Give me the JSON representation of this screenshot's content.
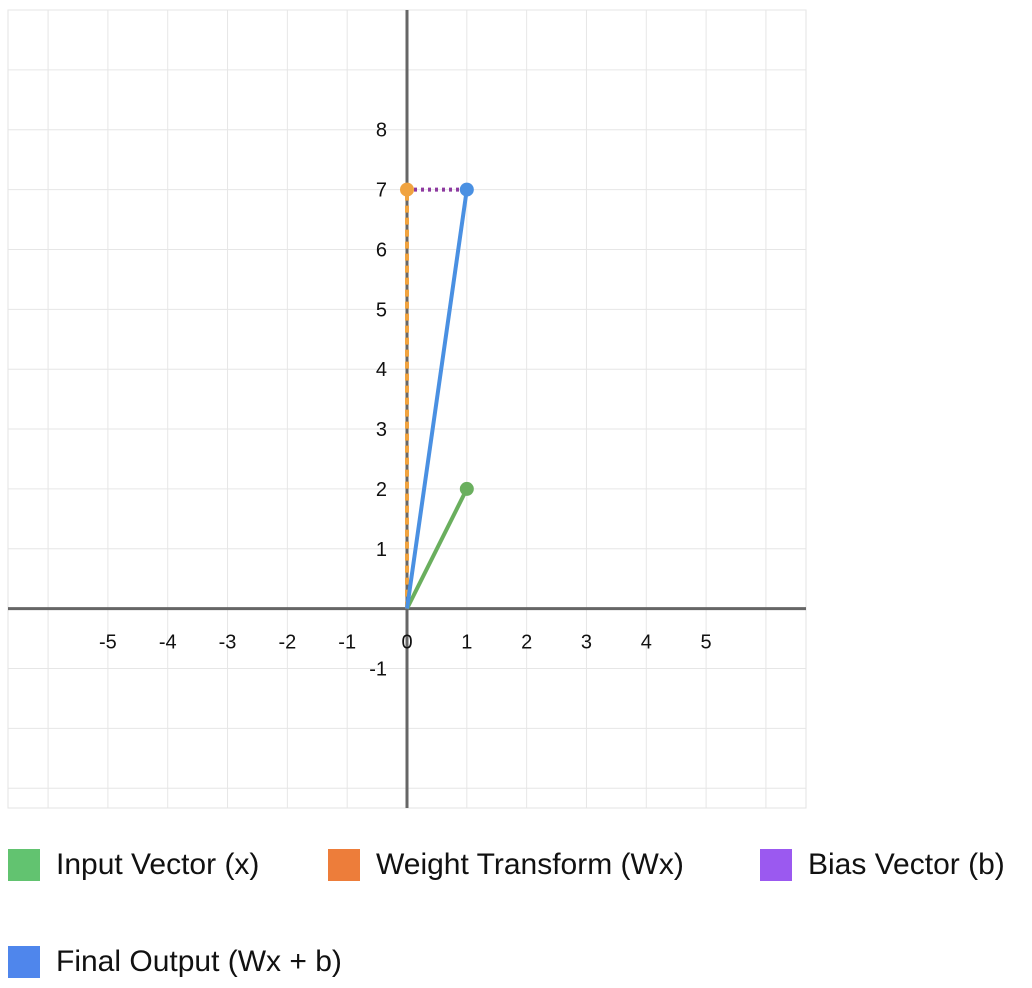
{
  "chart_data": {
    "type": "line",
    "title": "",
    "xlabel": "",
    "ylabel": "",
    "xlim": [
      -6.67,
      6.67
    ],
    "ylim": [
      -3.33,
      10
    ],
    "grid": true,
    "x_ticks": [
      "-5",
      "-4",
      "-3",
      "-2",
      "-1",
      "0",
      "1",
      "2",
      "3",
      "4",
      "5"
    ],
    "y_ticks": [
      "8",
      "7",
      "6",
      "5",
      "4",
      "3",
      "2",
      "1",
      "-1"
    ],
    "series": [
      {
        "name": "Input Vector (x)",
        "color": "#6aaf5e",
        "style": "solid",
        "start": [
          0,
          0
        ],
        "end": [
          1,
          2
        ]
      },
      {
        "name": "Weight Transform (Wx)",
        "color": "#f0a340",
        "style": "dashed",
        "start": [
          0,
          0
        ],
        "end": [
          0,
          7
        ]
      },
      {
        "name": "Bias Vector (b)",
        "color": "#8e3aa0",
        "style": "dotted",
        "start": [
          0,
          7
        ],
        "end": [
          1,
          7
        ]
      },
      {
        "name": "Final Output (Wx + b)",
        "color": "#4a90e2",
        "style": "solid",
        "start": [
          0,
          0
        ],
        "end": [
          1,
          7
        ]
      }
    ]
  },
  "legend": [
    {
      "label": "Input Vector (x)",
      "color": "#62c370"
    },
    {
      "label": "Weight Transform (Wx)",
      "color": "#ed7d3a"
    },
    {
      "label": "Bias Vector (b)",
      "color": "#9b59f0"
    },
    {
      "label": "Final Output (Wx + b)",
      "color": "#4f86ec"
    }
  ]
}
